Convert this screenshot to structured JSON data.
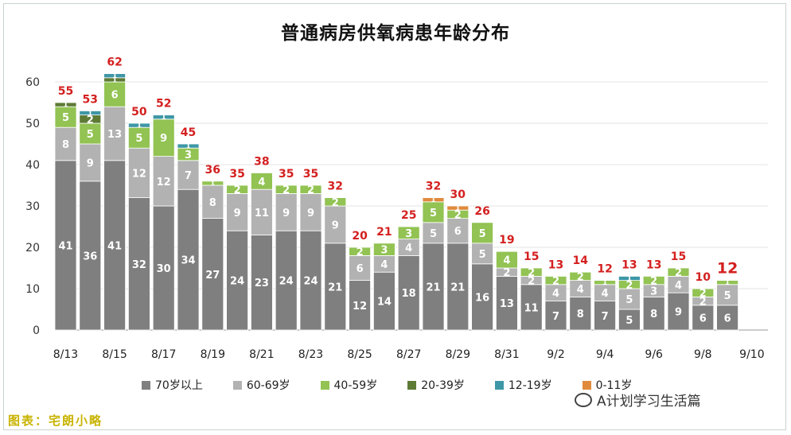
{
  "chart_data": {
    "type": "bar",
    "stacked": true,
    "title": "普通病房供氧病患年龄分布",
    "categories": [
      "8/13",
      "8/14",
      "8/15",
      "8/16",
      "8/17",
      "8/18",
      "8/19",
      "8/20",
      "8/21",
      "8/22",
      "8/23",
      "8/24",
      "8/25",
      "8/26",
      "8/27",
      "8/28",
      "8/29",
      "8/30",
      "8/31",
      "9/1",
      "9/2",
      "9/3",
      "9/4",
      "9/5",
      "9/6",
      "9/7",
      "9/8",
      "9/9"
    ],
    "x_tick_labels": [
      "8/13",
      "8/15",
      "8/17",
      "8/19",
      "8/21",
      "8/23",
      "8/25",
      "8/27",
      "8/29",
      "8/31",
      "9/2",
      "9/4",
      "9/6",
      "9/8",
      "9/10"
    ],
    "y_ticks": [
      0,
      10,
      20,
      30,
      40,
      50,
      60
    ],
    "ylim": [
      0,
      65
    ],
    "grid": true,
    "legend_position": "bottom",
    "series": [
      {
        "name": "70岁以上",
        "color": "#7f7f7f",
        "values": [
          41,
          36,
          41,
          32,
          30,
          34,
          27,
          24,
          23,
          24,
          24,
          21,
          12,
          14,
          18,
          21,
          21,
          16,
          13,
          11,
          7,
          8,
          7,
          5,
          8,
          9,
          6,
          6
        ]
      },
      {
        "name": "60-69岁",
        "color": "#b2b2b2",
        "values": [
          8,
          9,
          13,
          12,
          12,
          7,
          8,
          9,
          11,
          9,
          9,
          9,
          6,
          4,
          4,
          5,
          6,
          5,
          2,
          2,
          4,
          4,
          4,
          5,
          3,
          4,
          2,
          5
        ]
      },
      {
        "name": "40-59岁",
        "color": "#92c353",
        "values": [
          5,
          5,
          6,
          5,
          9,
          3,
          1,
          2,
          4,
          2,
          2,
          2,
          2,
          3,
          3,
          5,
          2,
          5,
          4,
          2,
          2,
          2,
          1,
          2,
          2,
          2,
          2,
          1
        ]
      },
      {
        "name": "20-39岁",
        "color": "#5e7b36",
        "values": [
          1,
          2,
          1,
          0,
          0,
          0,
          0,
          0,
          0,
          0,
          0,
          0,
          0,
          0,
          0,
          0,
          0,
          0,
          0,
          0,
          0,
          0,
          0,
          0,
          0,
          0,
          0,
          0
        ]
      },
      {
        "name": "12-19岁",
        "color": "#3e97a6",
        "values": [
          0,
          1,
          1,
          1,
          1,
          1,
          0,
          0,
          0,
          0,
          0,
          0,
          0,
          0,
          0,
          0,
          0,
          0,
          0,
          0,
          0,
          0,
          0,
          1,
          0,
          0,
          0,
          0
        ]
      },
      {
        "name": "0-11岁",
        "color": "#e08a3c",
        "values": [
          0,
          0,
          0,
          0,
          0,
          0,
          0,
          0,
          0,
          0,
          0,
          0,
          0,
          0,
          0,
          1,
          1,
          0,
          0,
          0,
          0,
          0,
          0,
          0,
          0,
          0,
          0,
          0
        ]
      }
    ],
    "totals": [
      55,
      53,
      62,
      50,
      52,
      45,
      36,
      35,
      38,
      35,
      35,
      32,
      20,
      21,
      25,
      32,
      30,
      26,
      19,
      15,
      13,
      14,
      12,
      13,
      13,
      15,
      10,
      12
    ]
  },
  "watermark": "A计划学习生活篇",
  "source_text": "图表：宅朗小略"
}
